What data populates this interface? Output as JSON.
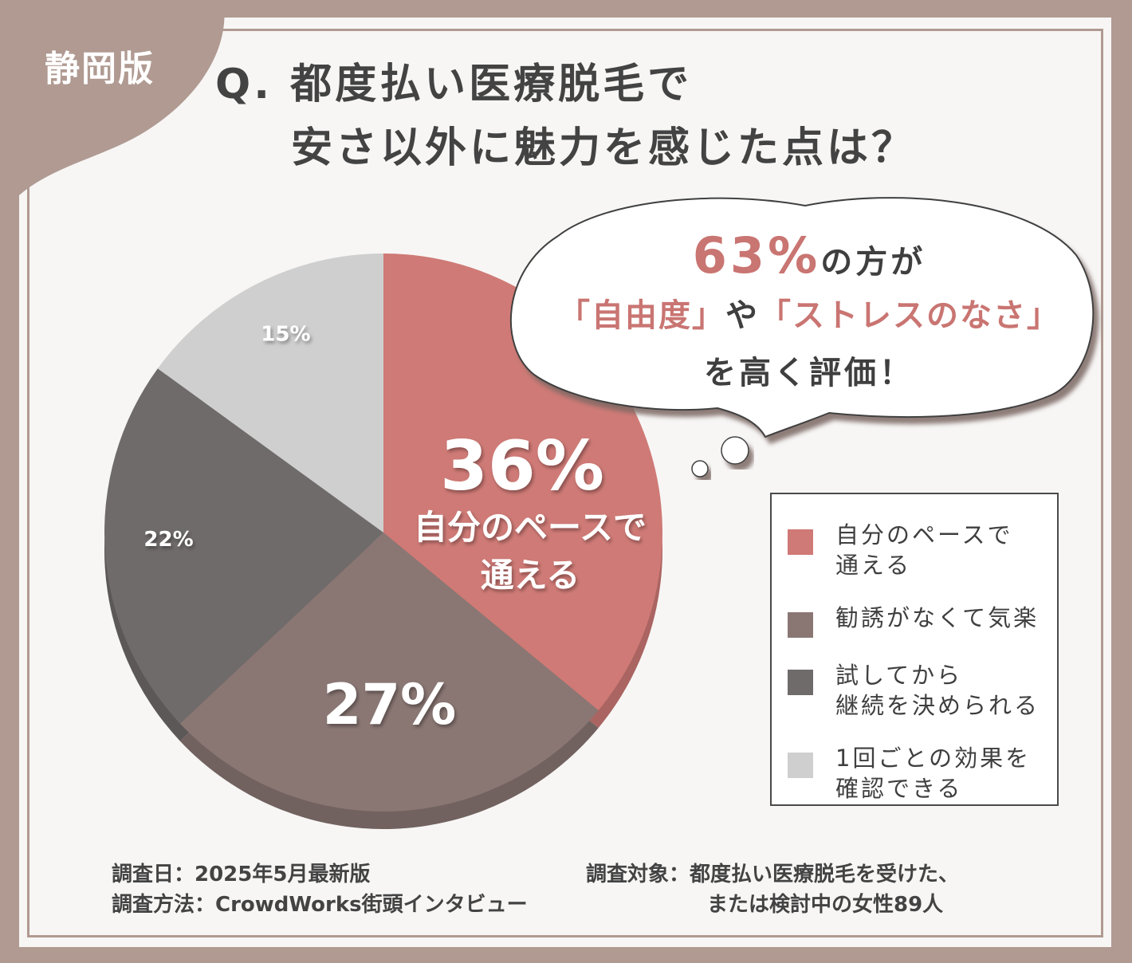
{
  "region_tag": "静岡版",
  "title": {
    "line1": "Q. 都度払い医療脱毛で",
    "line2": "安さ以外に魅力を感じた点は？"
  },
  "callout": {
    "percent": "63%",
    "line1_suffix": "の方が",
    "quote1": "「自由度」",
    "connector": "や",
    "quote2": "「ストレスのなさ」",
    "line3": "を高く評価！"
  },
  "chart_data": {
    "type": "pie",
    "slices": [
      {
        "label": "自分のペースで\n通える",
        "value": 36,
        "color": "#cf7a76",
        "display_value": "36%",
        "display_label": "自分のペースで\n通える"
      },
      {
        "label": "勧誘がなくて気楽",
        "value": 27,
        "color": "#8a7774",
        "display_value": "27%"
      },
      {
        "label": "試してから\n継続を決められる",
        "value": 22,
        "color": "#6f6b6a",
        "display_value": "22%"
      },
      {
        "label": "1回ごとの効果を\n確認できる",
        "value": 15,
        "color": "#cfcfcf",
        "display_value": "15%"
      }
    ],
    "legend_placement": "right"
  },
  "footer": {
    "survey_date": "調査日：2025年5月最新版",
    "survey_method": "調査方法：CrowdWorks街頭インタビュー",
    "survey_target_line1": "調査対象：都度払い医療脱毛を受けた、",
    "survey_target_line2": "または検討中の女性89人"
  }
}
